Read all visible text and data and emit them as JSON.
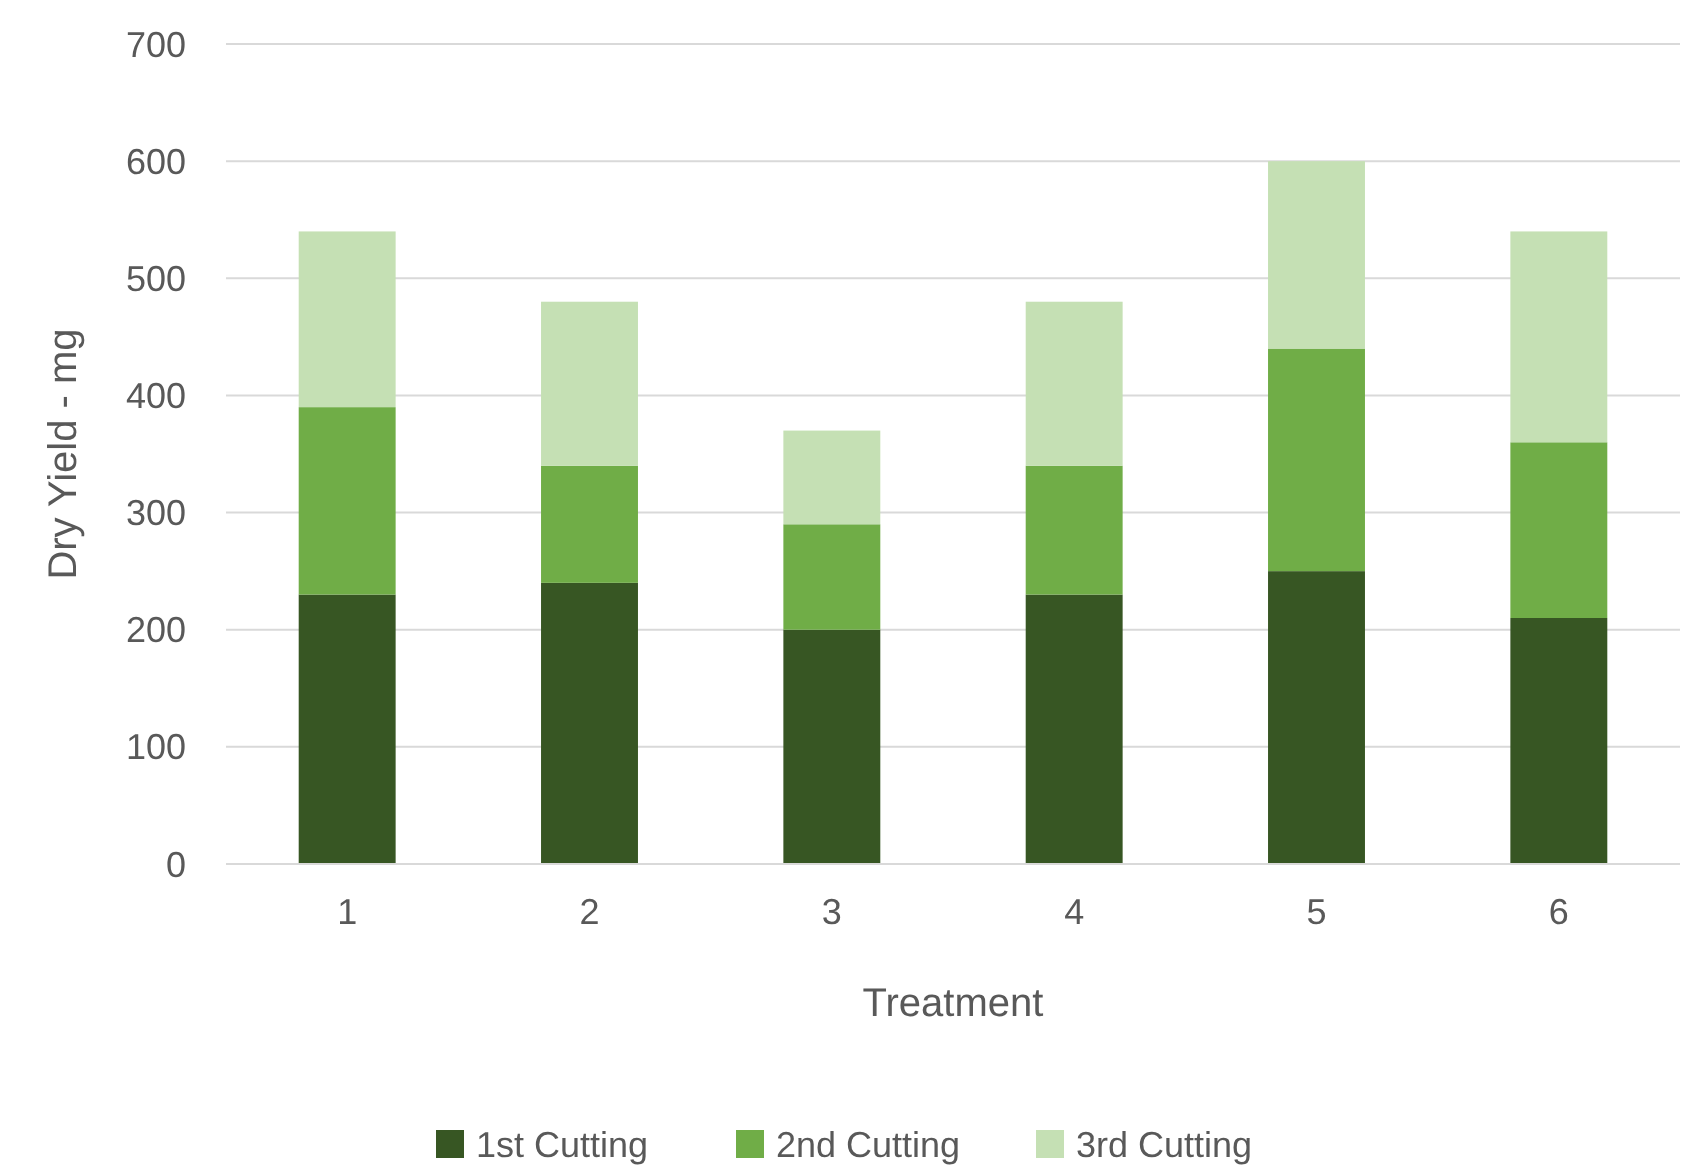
{
  "chart_data": {
    "type": "bar",
    "stacked": true,
    "xlabel": "Treatment",
    "ylabel": "Dry Yield - mg",
    "categories": [
      "1",
      "2",
      "3",
      "4",
      "5",
      "6"
    ],
    "series": [
      {
        "name": "1st Cutting",
        "color": "#375623",
        "values": [
          230,
          240,
          200,
          230,
          250,
          210
        ]
      },
      {
        "name": "2nd Cutting",
        "color": "#70ad47",
        "values": [
          160,
          100,
          90,
          110,
          190,
          150
        ]
      },
      {
        "name": "3rd Cutting",
        "color": "#c5e0b4",
        "values": [
          150,
          140,
          80,
          140,
          160,
          180
        ]
      }
    ],
    "ylim": [
      0,
      700
    ],
    "yticks": [
      0,
      100,
      200,
      300,
      400,
      500,
      600,
      700
    ],
    "grid": "y",
    "legend": "bottom"
  }
}
